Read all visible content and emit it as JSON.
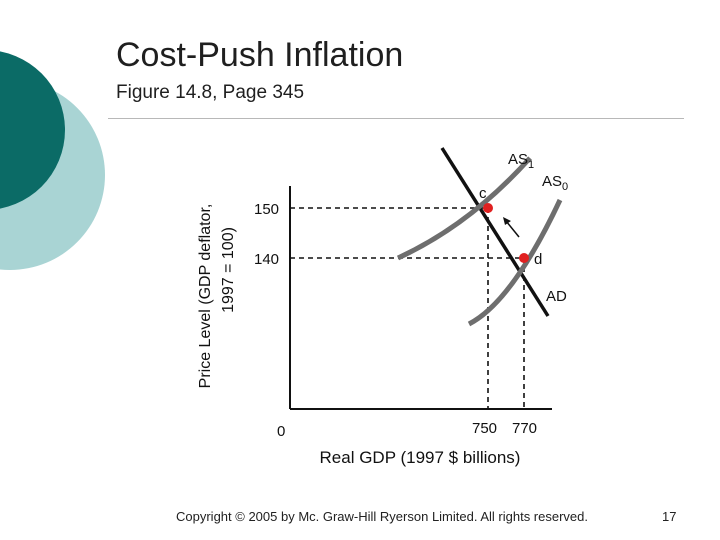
{
  "slide": {
    "title": "Cost-Push Inflation",
    "subtitle": "Figure 14.8, Page 345",
    "footer": "Copyright © 2005 by Mc. Graw-Hill Ryerson Limited. All rights reserved.",
    "page_number": "17"
  },
  "theme": {
    "accent_dark": "#0b6b66",
    "accent_light": "#a9d4d4",
    "curve_color": "#6e6e6e",
    "ad_color": "#111111",
    "point_color": "#e02020"
  },
  "diagram": {
    "y_axis_label_line1": "Price Level (GDP deflator,",
    "y_axis_label_line2": "1997 = 100)",
    "x_axis_label": "Real GDP (1997 $ billions)",
    "origin_label": "0",
    "y_ticks": [
      "150",
      "140"
    ],
    "x_ticks": [
      "750",
      "770"
    ],
    "curves": {
      "as1": {
        "base": "AS",
        "sub": "1"
      },
      "as0": {
        "base": "AS",
        "sub": "0"
      },
      "ad": "AD"
    },
    "points": [
      {
        "label": "c",
        "gdp": 750,
        "price": 150
      },
      {
        "label": "d",
        "gdp": 770,
        "price": 140
      }
    ]
  }
}
